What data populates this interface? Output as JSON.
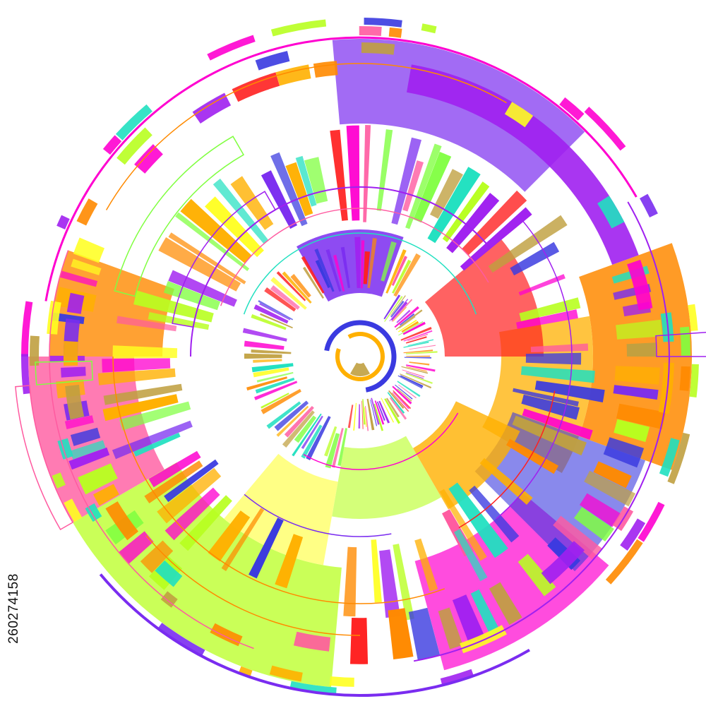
{
  "stock_image": {
    "id_label": "260274158"
  },
  "palette": {
    "purple": "#7a2cf0",
    "violet": "#a020f0",
    "magenta": "#ff00d0",
    "pink": "#ff5aa0",
    "red": "#ff2020",
    "orange": "#ff8a00",
    "amber": "#ffb000",
    "yellow": "#ffff20",
    "lime": "#b8ff20",
    "green": "#80ff40",
    "blue": "#3a3ae0",
    "teal": "#20e0c0",
    "olive": "#c0a040"
  }
}
